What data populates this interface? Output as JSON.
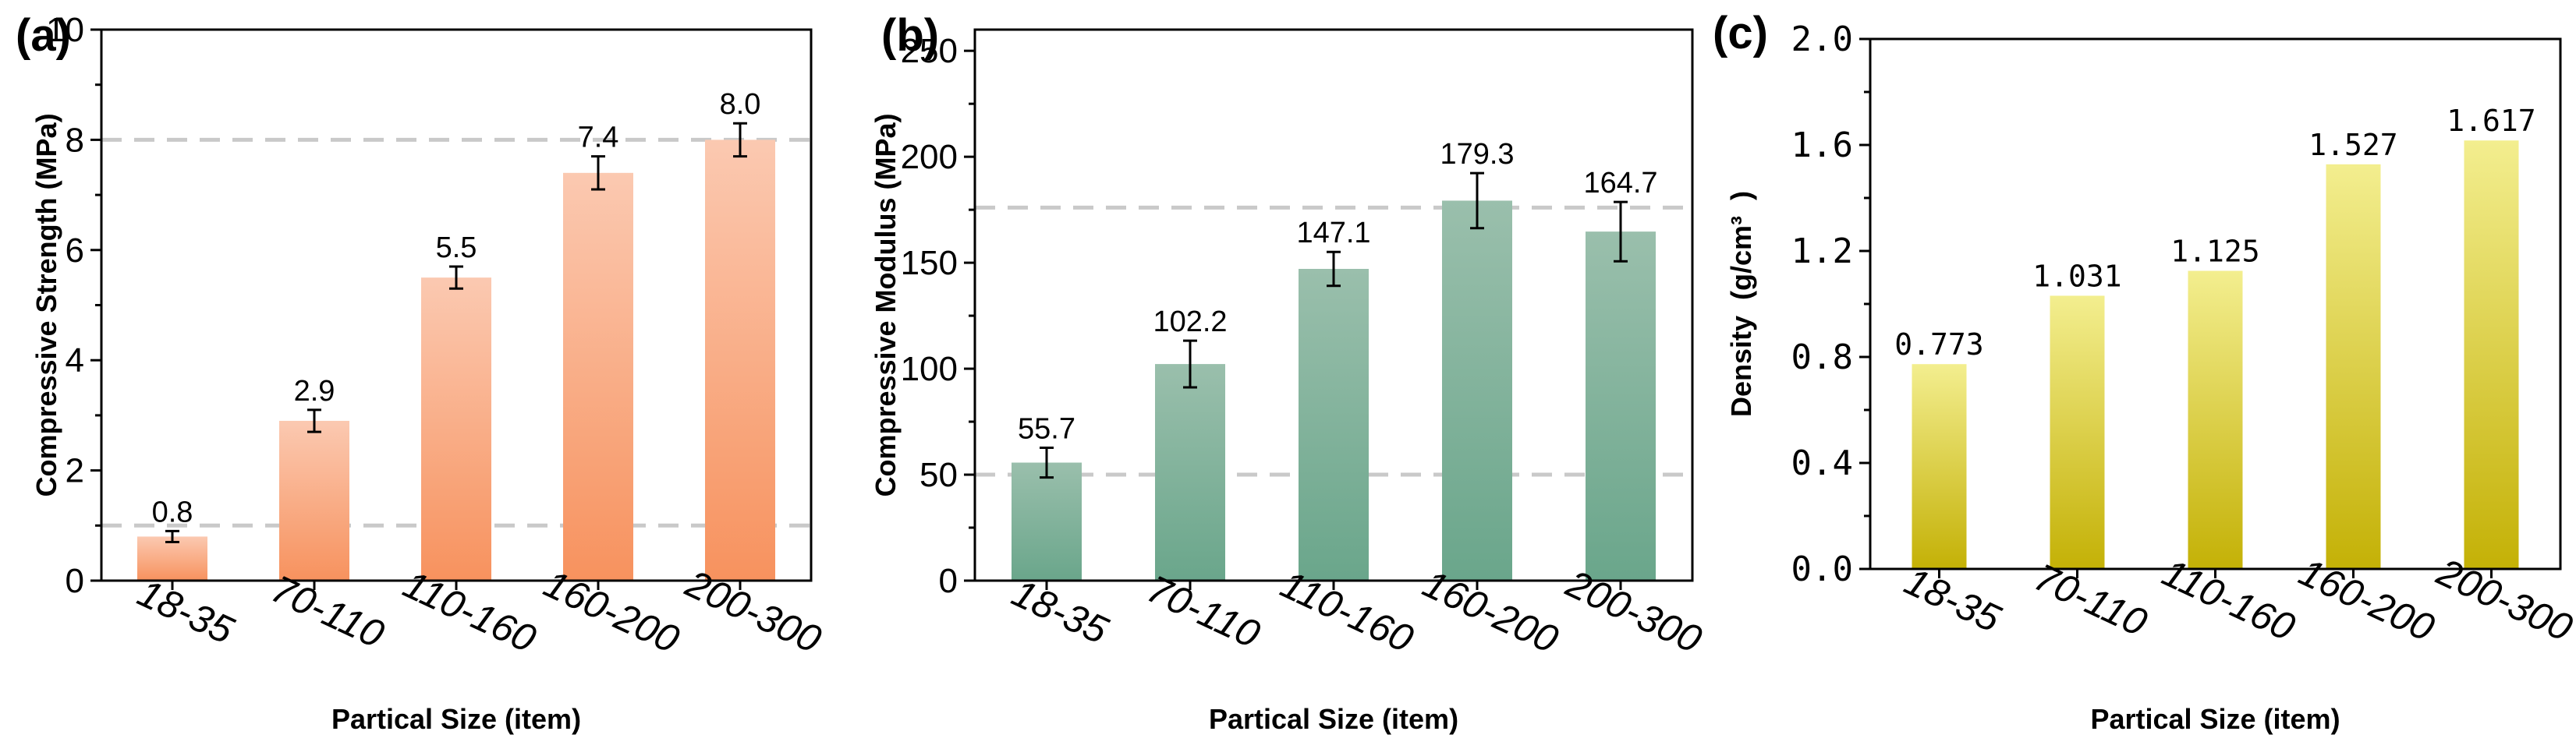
{
  "chart_data": [
    {
      "id": "a",
      "type": "bar",
      "panel_label": "(a)",
      "xlabel": "Partical Size (item)",
      "ylabel": "Compressive Strength (MPa)",
      "categories": [
        "18-35",
        "70-110",
        "110-160",
        "160-200",
        "200-300"
      ],
      "values": [
        0.8,
        2.9,
        5.5,
        7.4,
        8.0
      ],
      "value_labels": [
        "0.8",
        "2.9",
        "5.5",
        "7.4",
        "8.0"
      ],
      "errors": [
        0.1,
        0.2,
        0.2,
        0.3,
        0.3
      ],
      "ylim": [
        0,
        10
      ],
      "yticks": [
        0,
        2,
        4,
        6,
        8,
        10
      ],
      "ytick_labels": [
        "0",
        "2",
        "4",
        "6",
        "8",
        "10"
      ],
      "reference_lines": [
        1.0,
        8.0
      ],
      "bar_color_top": "#fbc9b1",
      "bar_color_bottom": "#f7925e"
    },
    {
      "id": "b",
      "type": "bar",
      "panel_label": "(b)",
      "xlabel": "Partical Size (item)",
      "ylabel": "Compressive Modulus (MPa)",
      "categories": [
        "18-35",
        "70-110",
        "110-160",
        "160-200",
        "200-300"
      ],
      "values": [
        55.7,
        102.2,
        147.1,
        179.3,
        164.7
      ],
      "value_labels": [
        "55.7",
        "102.2",
        "147.1",
        "179.3",
        "164.7"
      ],
      "errors": [
        7,
        11,
        8,
        13,
        14
      ],
      "ylim": [
        0,
        260
      ],
      "yticks": [
        0,
        50,
        100,
        150,
        200,
        250
      ],
      "ytick_labels": [
        "0",
        "50",
        "100",
        "150",
        "200",
        "250"
      ],
      "reference_lines": [
        50,
        176
      ],
      "bar_color_top": "#9abfac",
      "bar_color_bottom": "#6aa68b"
    },
    {
      "id": "c",
      "type": "bar",
      "panel_label": "(c)",
      "xlabel": "Partical Size (item)",
      "ylabel": "Density  (g/cm³  )",
      "categories": [
        "18-35",
        "70-110",
        "110-160",
        "160-200",
        "200-300"
      ],
      "values": [
        0.773,
        1.031,
        1.125,
        1.527,
        1.617
      ],
      "value_labels": [
        "0.773",
        "1.031",
        "1.125",
        "1.527",
        "1.617"
      ],
      "ylim": [
        0,
        2.0
      ],
      "yticks": [
        0,
        0.4,
        0.8,
        1.2,
        1.6,
        2.0
      ],
      "ytick_labels": [
        "0.0",
        "0.4",
        "0.8",
        "1.2",
        "1.6",
        "2.0"
      ],
      "bar_color_top": "#f3ee8f",
      "bar_color_bottom": "#c4b106"
    }
  ]
}
